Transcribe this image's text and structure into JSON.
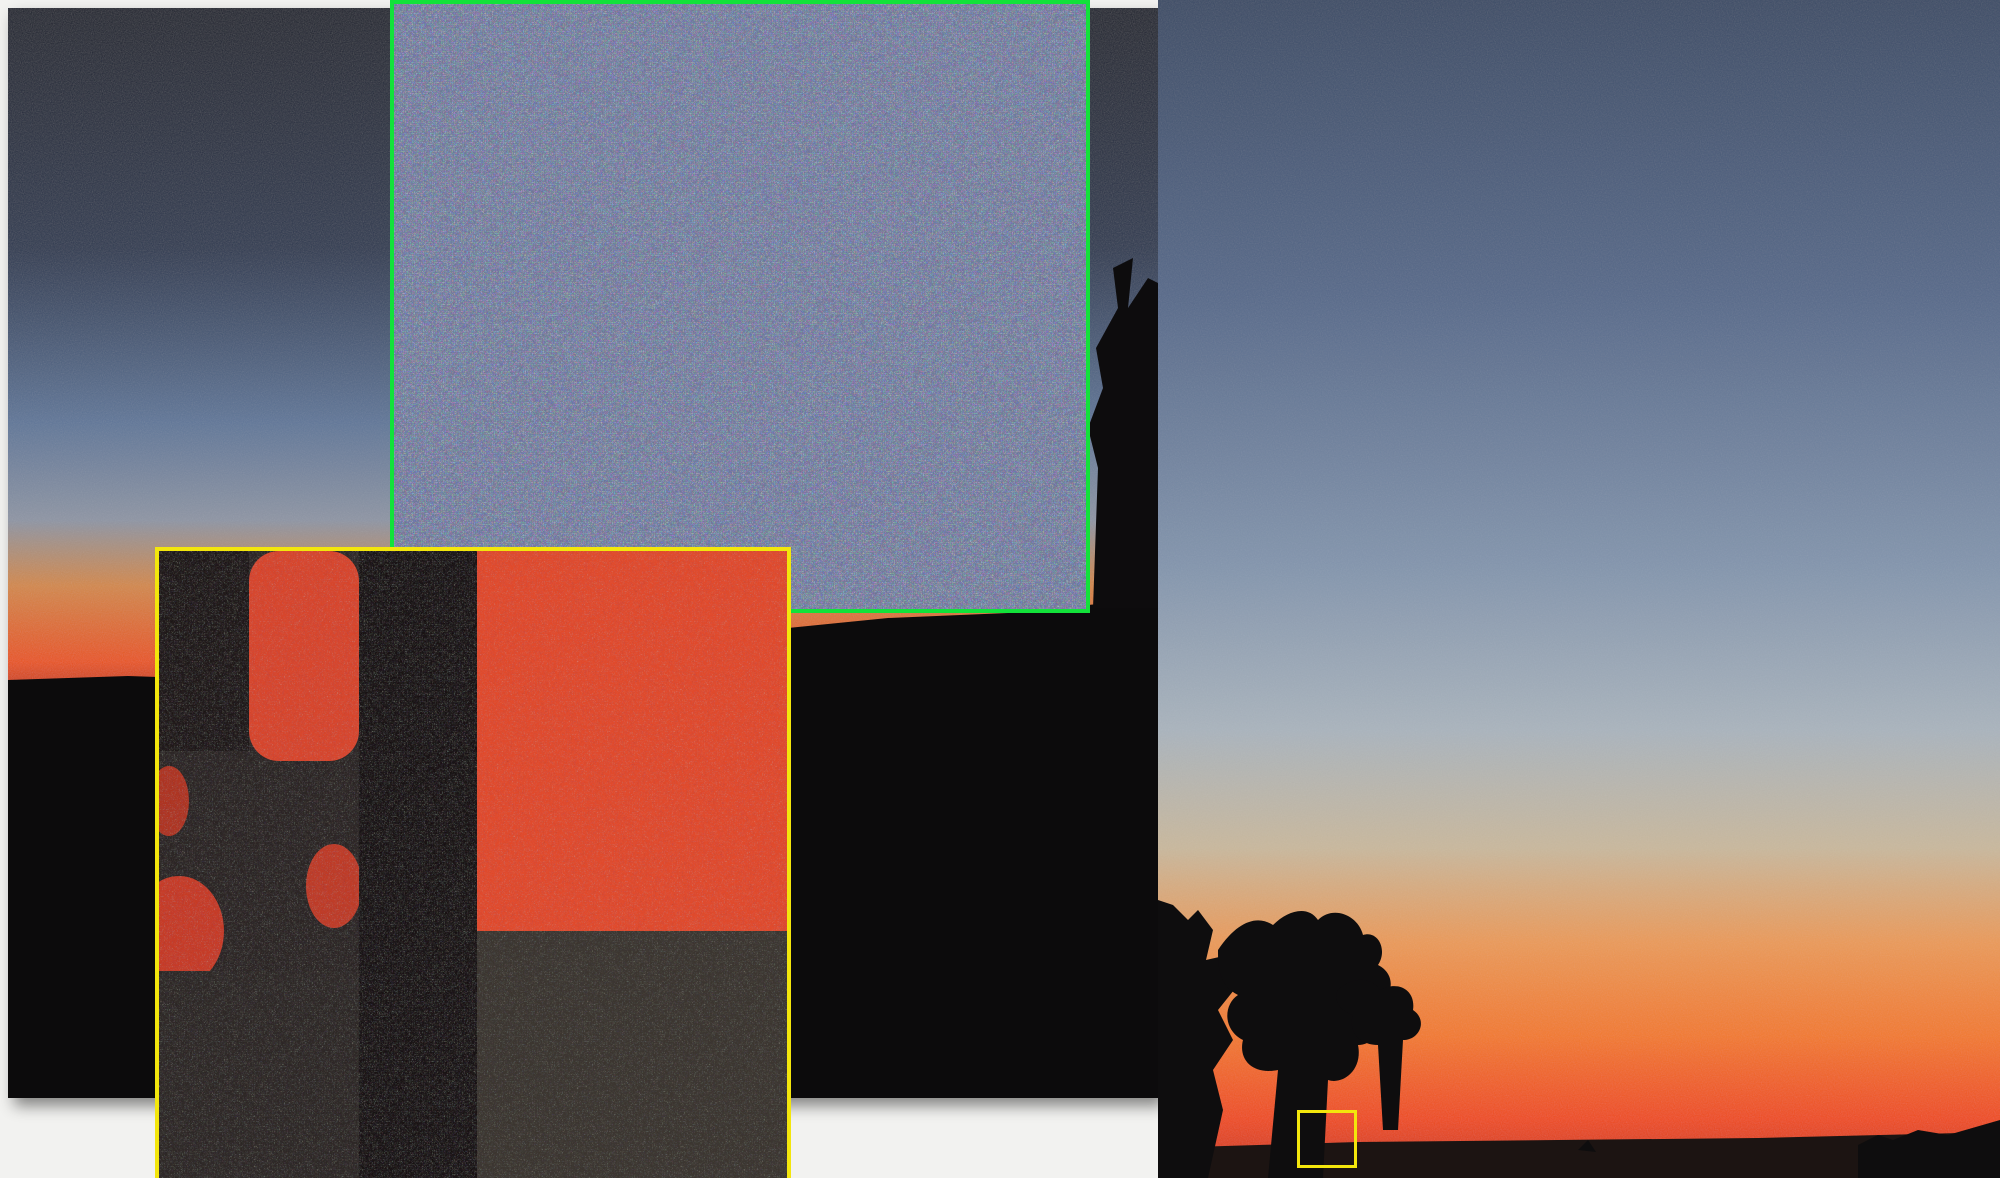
{
  "scene": {
    "subject": "sunset-sky-with-pine-silhouettes",
    "colors": {
      "sky_top": "#1d2333",
      "sky_mid": "#6f86a8",
      "sky_pale": "#b4bcc4",
      "sky_orange": "#f07a22",
      "horizon_red": "#e8401a",
      "ground": "#0b0a0a",
      "inset_green_border": "#12e23a",
      "inset_yellow_border": "#f3e60c",
      "page_background": "#f2f2f0"
    }
  },
  "panels": [
    {
      "name": "left-photo",
      "content": "dusk-sky-gradient"
    },
    {
      "name": "right-photo",
      "content": "dusk-sky-gradient-with-trees"
    },
    {
      "name": "green-zoom-inset",
      "content": "noisy-blue-sky-closeup"
    },
    {
      "name": "yellow-zoom-inset",
      "content": "noisy-trunk-and-orange-sky-closeup"
    }
  ]
}
